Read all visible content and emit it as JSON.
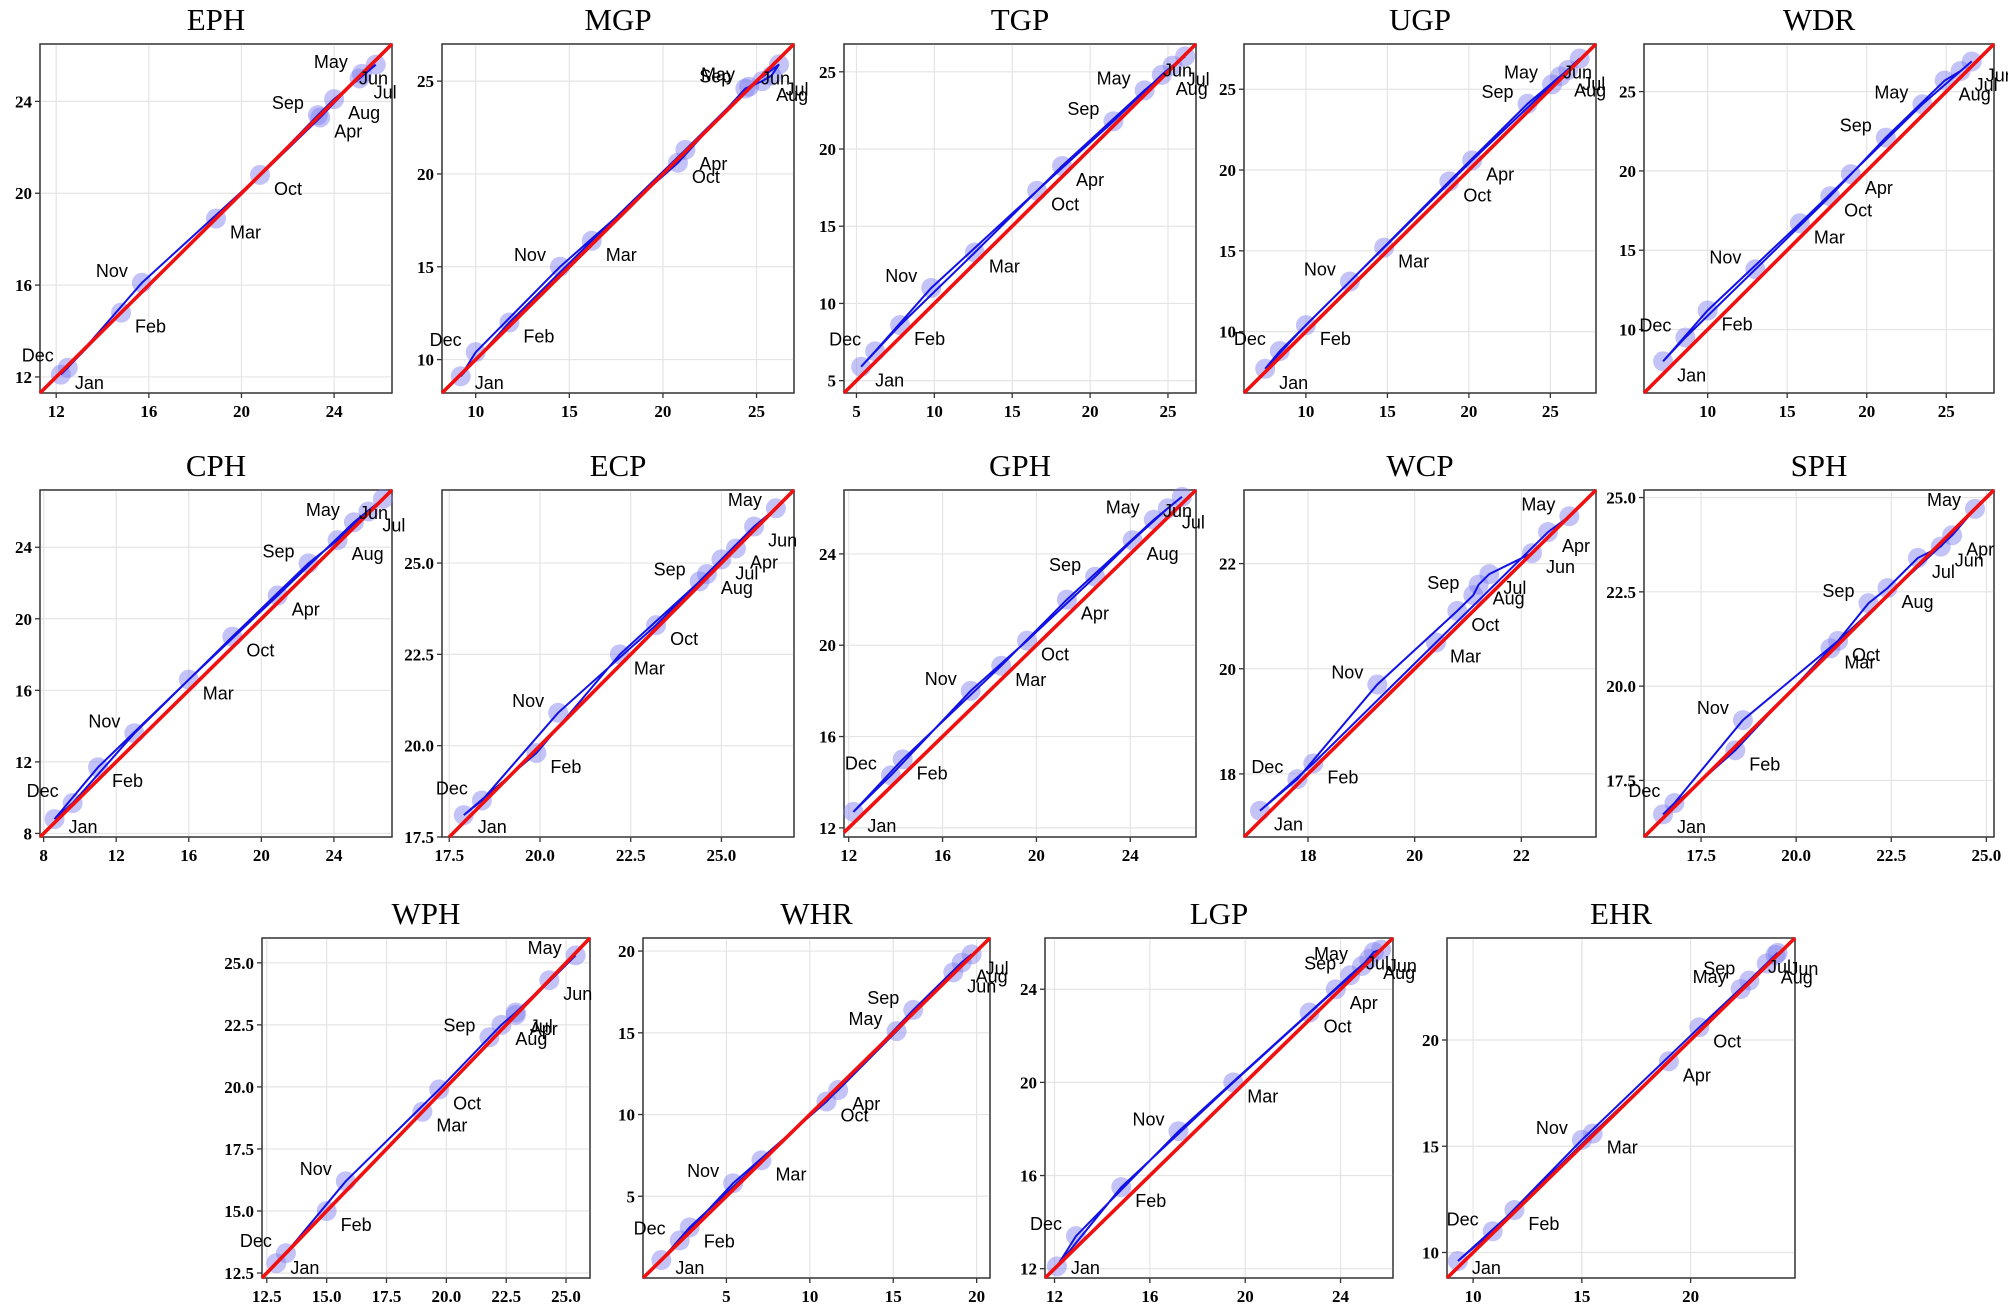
{
  "colors": {
    "points": "#7b7bf0",
    "path": "#1212e6",
    "identity": "#f01010",
    "grid": "#e4e4e4",
    "frame": "#333333"
  },
  "chart_data": [
    {
      "title": "EPH",
      "type": "scatter",
      "xlim": [
        11.3,
        26.5
      ],
      "ylim": [
        11.3,
        26.5
      ],
      "xticks": [
        12,
        16,
        20,
        24
      ],
      "yticks": [
        12,
        16,
        20,
        24
      ],
      "points": [
        {
          "label": "Jan",
          "x": 12.2,
          "y": 12.1
        },
        {
          "label": "Feb",
          "x": 14.8,
          "y": 14.8
        },
        {
          "label": "Mar",
          "x": 18.9,
          "y": 18.9
        },
        {
          "label": "Apr",
          "x": 23.4,
          "y": 23.3
        },
        {
          "label": "May",
          "x": 25.2,
          "y": 25.2
        },
        {
          "label": "Jun",
          "x": 25.8,
          "y": 25.6
        },
        {
          "label": "Jul",
          "x": 25.1,
          "y": 25.0
        },
        {
          "label": "Aug",
          "x": 24.0,
          "y": 24.1
        },
        {
          "label": "Sep",
          "x": 23.3,
          "y": 23.4
        },
        {
          "label": "Oct",
          "x": 20.8,
          "y": 20.8
        },
        {
          "label": "Nov",
          "x": 15.7,
          "y": 16.1
        },
        {
          "label": "Dec",
          "x": 12.5,
          "y": 12.4
        }
      ]
    },
    {
      "title": "MGP",
      "type": "scatter",
      "xlim": [
        8.2,
        27.0
      ],
      "ylim": [
        8.2,
        27.0
      ],
      "xticks": [
        10,
        15,
        20,
        25
      ],
      "yticks": [
        10,
        15,
        20,
        25
      ],
      "points": [
        {
          "label": "Jan",
          "x": 9.2,
          "y": 9.1
        },
        {
          "label": "Feb",
          "x": 11.8,
          "y": 12.0
        },
        {
          "label": "Mar",
          "x": 16.2,
          "y": 16.4
        },
        {
          "label": "Apr",
          "x": 21.2,
          "y": 21.3
        },
        {
          "label": "May",
          "x": 24.6,
          "y": 24.7
        },
        {
          "label": "Jun",
          "x": 26.2,
          "y": 25.9
        },
        {
          "label": "Jul",
          "x": 25.8,
          "y": 25.3
        },
        {
          "label": "Aug",
          "x": 25.3,
          "y": 25.0
        },
        {
          "label": "Sep",
          "x": 24.4,
          "y": 24.6
        },
        {
          "label": "Oct",
          "x": 20.8,
          "y": 20.6
        },
        {
          "label": "Nov",
          "x": 14.5,
          "y": 15.0
        },
        {
          "label": "Dec",
          "x": 10.0,
          "y": 10.4
        }
      ]
    },
    {
      "title": "TGP",
      "type": "scatter",
      "xlim": [
        4.2,
        26.8
      ],
      "ylim": [
        4.2,
        26.8
      ],
      "xticks": [
        5,
        10,
        15,
        20,
        25
      ],
      "yticks": [
        5,
        10,
        15,
        20,
        25
      ],
      "points": [
        {
          "label": "Jan",
          "x": 5.3,
          "y": 5.9
        },
        {
          "label": "Feb",
          "x": 7.8,
          "y": 8.6
        },
        {
          "label": "Mar",
          "x": 12.6,
          "y": 13.3
        },
        {
          "label": "Apr",
          "x": 18.2,
          "y": 18.9
        },
        {
          "label": "May",
          "x": 23.5,
          "y": 23.8
        },
        {
          "label": "Jun",
          "x": 26.1,
          "y": 26.0
        },
        {
          "label": "Jul",
          "x": 25.3,
          "y": 25.4
        },
        {
          "label": "Aug",
          "x": 24.6,
          "y": 24.8
        },
        {
          "label": "Sep",
          "x": 21.5,
          "y": 21.8
        },
        {
          "label": "Oct",
          "x": 16.6,
          "y": 17.3
        },
        {
          "label": "Nov",
          "x": 9.8,
          "y": 11.0
        },
        {
          "label": "Dec",
          "x": 6.2,
          "y": 6.9
        }
      ]
    },
    {
      "title": "UGP",
      "type": "scatter",
      "xlim": [
        6.2,
        27.8
      ],
      "ylim": [
        6.2,
        27.8
      ],
      "xticks": [
        10,
        15,
        20,
        25
      ],
      "yticks": [
        10,
        15,
        20,
        25
      ],
      "points": [
        {
          "label": "Jan",
          "x": 7.5,
          "y": 7.7
        },
        {
          "label": "Feb",
          "x": 10.0,
          "y": 10.4
        },
        {
          "label": "Mar",
          "x": 14.8,
          "y": 15.2
        },
        {
          "label": "Apr",
          "x": 20.2,
          "y": 20.6
        },
        {
          "label": "May",
          "x": 25.1,
          "y": 25.3
        },
        {
          "label": "Jun",
          "x": 26.8,
          "y": 26.9
        },
        {
          "label": "Jul",
          "x": 26.1,
          "y": 26.2
        },
        {
          "label": "Aug",
          "x": 25.6,
          "y": 25.8
        },
        {
          "label": "Sep",
          "x": 23.6,
          "y": 24.1
        },
        {
          "label": "Oct",
          "x": 18.8,
          "y": 19.3
        },
        {
          "label": "Nov",
          "x": 12.7,
          "y": 13.1
        },
        {
          "label": "Dec",
          "x": 8.4,
          "y": 8.8
        }
      ]
    },
    {
      "title": "WDR",
      "type": "scatter",
      "xlim": [
        6.0,
        28.0
      ],
      "ylim": [
        6.0,
        28.0
      ],
      "xticks": [
        10,
        15,
        20,
        25
      ],
      "yticks": [
        10,
        15,
        20,
        25
      ],
      "points": [
        {
          "label": "Jan",
          "x": 7.2,
          "y": 8.0
        },
        {
          "label": "Feb",
          "x": 10.0,
          "y": 11.2
        },
        {
          "label": "Mar",
          "x": 15.8,
          "y": 16.7
        },
        {
          "label": "Apr",
          "x": 19.0,
          "y": 19.8
        },
        {
          "label": "May",
          "x": 23.5,
          "y": 24.2
        },
        {
          "label": "Jun",
          "x": 26.6,
          "y": 26.9
        },
        {
          "label": "Jul",
          "x": 25.9,
          "y": 26.3
        },
        {
          "label": "Aug",
          "x": 24.9,
          "y": 25.7
        },
        {
          "label": "Sep",
          "x": 21.2,
          "y": 22.1
        },
        {
          "label": "Oct",
          "x": 17.7,
          "y": 18.4
        },
        {
          "label": "Nov",
          "x": 13.0,
          "y": 13.8
        },
        {
          "label": "Dec",
          "x": 8.6,
          "y": 9.5
        }
      ]
    },
    {
      "title": "CPH",
      "type": "scatter",
      "xlim": [
        7.8,
        27.2
      ],
      "ylim": [
        7.8,
        27.2
      ],
      "xticks": [
        8,
        12,
        16,
        20,
        24
      ],
      "yticks": [
        8,
        12,
        16,
        20,
        24
      ],
      "points": [
        {
          "label": "Jan",
          "x": 8.6,
          "y": 8.8
        },
        {
          "label": "Feb",
          "x": 11.0,
          "y": 11.7
        },
        {
          "label": "Mar",
          "x": 16.0,
          "y": 16.6
        },
        {
          "label": "Apr",
          "x": 20.9,
          "y": 21.3
        },
        {
          "label": "May",
          "x": 25.1,
          "y": 25.4
        },
        {
          "label": "Jun",
          "x": 26.7,
          "y": 26.7
        },
        {
          "label": "Jul",
          "x": 25.9,
          "y": 26.0
        },
        {
          "label": "Aug",
          "x": 24.2,
          "y": 24.4
        },
        {
          "label": "Sep",
          "x": 22.6,
          "y": 23.1
        },
        {
          "label": "Oct",
          "x": 18.4,
          "y": 19.0
        },
        {
          "label": "Nov",
          "x": 13.0,
          "y": 13.6
        },
        {
          "label": "Dec",
          "x": 9.6,
          "y": 9.7
        }
      ]
    },
    {
      "title": "ECP",
      "type": "scatter",
      "xlim": [
        17.3,
        27.0
      ],
      "ylim": [
        17.5,
        27.0
      ],
      "xticks": [
        17.5,
        20.0,
        22.5,
        25.0
      ],
      "yticks": [
        17.5,
        20.0,
        22.5,
        25.0
      ],
      "points": [
        {
          "label": "Jan",
          "x": 17.9,
          "y": 18.1
        },
        {
          "label": "Feb",
          "x": 19.9,
          "y": 19.8
        },
        {
          "label": "Mar",
          "x": 22.2,
          "y": 22.5
        },
        {
          "label": "Apr",
          "x": 25.4,
          "y": 25.4
        },
        {
          "label": "May",
          "x": 26.5,
          "y": 26.5
        },
        {
          "label": "Jun",
          "x": 25.9,
          "y": 26.0
        },
        {
          "label": "Jul",
          "x": 25.0,
          "y": 25.1
        },
        {
          "label": "Aug",
          "x": 24.6,
          "y": 24.7
        },
        {
          "label": "Sep",
          "x": 24.4,
          "y": 24.5
        },
        {
          "label": "Oct",
          "x": 23.2,
          "y": 23.3
        },
        {
          "label": "Nov",
          "x": 20.5,
          "y": 20.9
        },
        {
          "label": "Dec",
          "x": 18.4,
          "y": 18.5
        }
      ]
    },
    {
      "title": "GPH",
      "type": "scatter",
      "xlim": [
        11.8,
        26.8
      ],
      "ylim": [
        11.6,
        26.8
      ],
      "xticks": [
        12,
        16,
        20,
        24
      ],
      "yticks": [
        12,
        16,
        20,
        24
      ],
      "points": [
        {
          "label": "Jan",
          "x": 12.2,
          "y": 12.7
        },
        {
          "label": "Feb",
          "x": 14.3,
          "y": 15.0
        },
        {
          "label": "Mar",
          "x": 18.5,
          "y": 19.1
        },
        {
          "label": "Apr",
          "x": 21.3,
          "y": 22.0
        },
        {
          "label": "May",
          "x": 25.0,
          "y": 25.5
        },
        {
          "label": "Jun",
          "x": 26.2,
          "y": 26.5
        },
        {
          "label": "Jul",
          "x": 25.6,
          "y": 26.0
        },
        {
          "label": "Aug",
          "x": 24.1,
          "y": 24.6
        },
        {
          "label": "Sep",
          "x": 22.5,
          "y": 23.0
        },
        {
          "label": "Oct",
          "x": 19.6,
          "y": 20.2
        },
        {
          "label": "Nov",
          "x": 17.2,
          "y": 18.0
        },
        {
          "label": "Dec",
          "x": 13.8,
          "y": 14.3
        }
      ]
    },
    {
      "title": "WCP",
      "type": "scatter",
      "xlim": [
        16.8,
        23.4
      ],
      "ylim": [
        16.8,
        23.4
      ],
      "xticks": [
        18,
        20,
        22
      ],
      "yticks": [
        18,
        20,
        22
      ],
      "points": [
        {
          "label": "Jan",
          "x": 17.1,
          "y": 17.3
        },
        {
          "label": "Feb",
          "x": 18.1,
          "y": 18.2
        },
        {
          "label": "Mar",
          "x": 20.4,
          "y": 20.5
        },
        {
          "label": "Apr",
          "x": 22.5,
          "y": 22.6
        },
        {
          "label": "May",
          "x": 22.9,
          "y": 22.9
        },
        {
          "label": "Jun",
          "x": 22.2,
          "y": 22.2
        },
        {
          "label": "Jul",
          "x": 21.4,
          "y": 21.8
        },
        {
          "label": "Aug",
          "x": 21.2,
          "y": 21.6
        },
        {
          "label": "Sep",
          "x": 21.1,
          "y": 21.4
        },
        {
          "label": "Oct",
          "x": 20.8,
          "y": 21.1
        },
        {
          "label": "Nov",
          "x": 19.3,
          "y": 19.7
        },
        {
          "label": "Dec",
          "x": 17.8,
          "y": 17.9
        }
      ]
    },
    {
      "title": "SPH",
      "type": "scatter",
      "xlim": [
        16.0,
        25.2
      ],
      "ylim": [
        16.0,
        25.2
      ],
      "xticks": [
        17.5,
        20.0,
        22.5,
        25.0
      ],
      "yticks": [
        17.5,
        20.0,
        22.5,
        25.0
      ],
      "points": [
        {
          "label": "Jan",
          "x": 16.5,
          "y": 16.6
        },
        {
          "label": "Feb",
          "x": 18.4,
          "y": 18.3
        },
        {
          "label": "Mar",
          "x": 20.9,
          "y": 21.0
        },
        {
          "label": "Apr",
          "x": 24.1,
          "y": 24.0
        },
        {
          "label": "May",
          "x": 24.7,
          "y": 24.7
        },
        {
          "label": "Jun",
          "x": 23.8,
          "y": 23.7
        },
        {
          "label": "Jul",
          "x": 23.2,
          "y": 23.4
        },
        {
          "label": "Aug",
          "x": 22.4,
          "y": 22.6
        },
        {
          "label": "Sep",
          "x": 21.9,
          "y": 22.2
        },
        {
          "label": "Oct",
          "x": 21.1,
          "y": 21.2
        },
        {
          "label": "Nov",
          "x": 18.6,
          "y": 19.1
        },
        {
          "label": "Dec",
          "x": 16.8,
          "y": 16.9
        }
      ]
    },
    {
      "title": "WPH",
      "type": "scatter",
      "xlim": [
        12.3,
        26.0
      ],
      "ylim": [
        12.3,
        26.0
      ],
      "xticks": [
        12.5,
        15.0,
        17.5,
        20.0,
        22.5,
        25.0
      ],
      "yticks": [
        12.5,
        15.0,
        17.5,
        20.0,
        22.5,
        25.0
      ],
      "points": [
        {
          "label": "Jan",
          "x": 12.9,
          "y": 12.9
        },
        {
          "label": "Feb",
          "x": 15.0,
          "y": 15.0
        },
        {
          "label": "Mar",
          "x": 19.0,
          "y": 19.0
        },
        {
          "label": "Apr",
          "x": 22.9,
          "y": 22.9
        },
        {
          "label": "May",
          "x": 25.4,
          "y": 25.3
        },
        {
          "label": "Jun",
          "x": 24.3,
          "y": 24.3
        },
        {
          "label": "Jul",
          "x": 22.9,
          "y": 23.0
        },
        {
          "label": "Aug",
          "x": 22.3,
          "y": 22.5
        },
        {
          "label": "Sep",
          "x": 21.8,
          "y": 22.0
        },
        {
          "label": "Oct",
          "x": 19.7,
          "y": 19.9
        },
        {
          "label": "Nov",
          "x": 15.8,
          "y": 16.2
        },
        {
          "label": "Dec",
          "x": 13.3,
          "y": 13.3
        }
      ]
    },
    {
      "title": "WHR",
      "type": "scatter",
      "xlim": [
        0.0,
        20.8
      ],
      "ylim": [
        0.0,
        20.8
      ],
      "xticks": [
        5,
        10,
        15,
        20
      ],
      "yticks": [
        5,
        10,
        15,
        20
      ],
      "points": [
        {
          "label": "Jan",
          "x": 1.1,
          "y": 1.1
        },
        {
          "label": "Feb",
          "x": 2.8,
          "y": 3.1
        },
        {
          "label": "Mar",
          "x": 7.1,
          "y": 7.2
        },
        {
          "label": "Apr",
          "x": 11.7,
          "y": 11.5
        },
        {
          "label": "May",
          "x": 15.2,
          "y": 15.1
        },
        {
          "label": "Jun",
          "x": 18.6,
          "y": 18.7
        },
        {
          "label": "Jul",
          "x": 19.7,
          "y": 19.8
        },
        {
          "label": "Aug",
          "x": 19.1,
          "y": 19.3
        },
        {
          "label": "Sep",
          "x": 16.2,
          "y": 16.4
        },
        {
          "label": "Oct",
          "x": 11.0,
          "y": 10.8
        },
        {
          "label": "Nov",
          "x": 5.4,
          "y": 5.8
        },
        {
          "label": "Dec",
          "x": 2.2,
          "y": 2.3
        }
      ]
    },
    {
      "title": "LGP",
      "type": "scatter",
      "xlim": [
        11.6,
        26.2
      ],
      "ylim": [
        11.6,
        26.2
      ],
      "xticks": [
        12,
        16,
        20,
        24
      ],
      "yticks": [
        12,
        16,
        20,
        24
      ],
      "points": [
        {
          "label": "Jan",
          "x": 12.1,
          "y": 12.1
        },
        {
          "label": "Feb",
          "x": 14.8,
          "y": 15.5
        },
        {
          "label": "Mar",
          "x": 19.5,
          "y": 20.0
        },
        {
          "label": "Apr",
          "x": 23.8,
          "y": 24.0
        },
        {
          "label": "May",
          "x": 24.9,
          "y": 25.0
        },
        {
          "label": "Jun",
          "x": 25.4,
          "y": 25.6
        },
        {
          "label": "Jul",
          "x": 25.7,
          "y": 25.7
        },
        {
          "label": "Aug",
          "x": 25.2,
          "y": 25.3
        },
        {
          "label": "Sep",
          "x": 24.4,
          "y": 24.6
        },
        {
          "label": "Oct",
          "x": 22.7,
          "y": 23.0
        },
        {
          "label": "Nov",
          "x": 17.2,
          "y": 17.9
        },
        {
          "label": "Dec",
          "x": 12.9,
          "y": 13.4
        }
      ]
    },
    {
      "title": "EHR",
      "type": "scatter",
      "xlim": [
        8.8,
        24.8
      ],
      "ylim": [
        8.8,
        24.8
      ],
      "xticks": [
        10,
        15,
        20
      ],
      "yticks": [
        10,
        15,
        20
      ],
      "points": [
        {
          "label": "Jan",
          "x": 9.3,
          "y": 9.6
        },
        {
          "label": "Feb",
          "x": 11.9,
          "y": 12.0
        },
        {
          "label": "Mar",
          "x": 15.5,
          "y": 15.6
        },
        {
          "label": "Apr",
          "x": 19.0,
          "y": 19.0
        },
        {
          "label": "May",
          "x": 22.3,
          "y": 22.4
        },
        {
          "label": "Jun",
          "x": 23.9,
          "y": 24.0
        },
        {
          "label": "Jul",
          "x": 24.0,
          "y": 24.1
        },
        {
          "label": "Aug",
          "x": 23.5,
          "y": 23.6
        },
        {
          "label": "Sep",
          "x": 22.7,
          "y": 22.8
        },
        {
          "label": "Oct",
          "x": 20.4,
          "y": 20.6
        },
        {
          "label": "Nov",
          "x": 15.0,
          "y": 15.3
        },
        {
          "label": "Dec",
          "x": 10.9,
          "y": 11.0
        }
      ]
    }
  ]
}
